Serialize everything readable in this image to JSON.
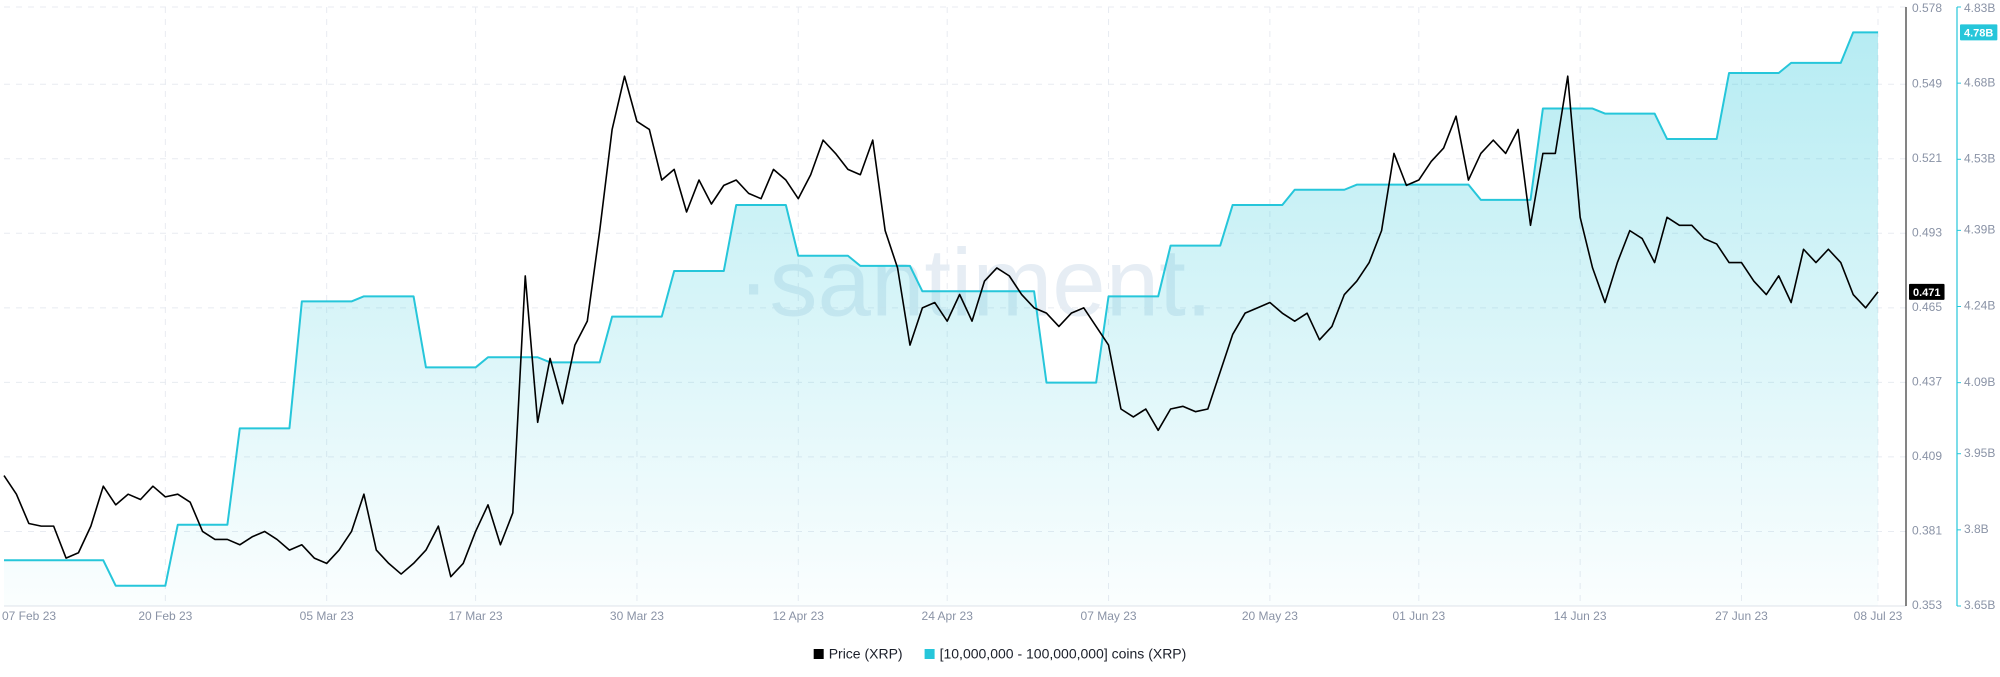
{
  "chart_data": {
    "type": "line",
    "watermark": "·santiment.",
    "x": [
      "07 Feb 23",
      "08 Feb 23",
      "09 Feb 23",
      "10 Feb 23",
      "11 Feb 23",
      "12 Feb 23",
      "13 Feb 23",
      "14 Feb 23",
      "15 Feb 23",
      "16 Feb 23",
      "17 Feb 23",
      "18 Feb 23",
      "19 Feb 23",
      "20 Feb 23",
      "21 Feb 23",
      "22 Feb 23",
      "23 Feb 23",
      "24 Feb 23",
      "25 Feb 23",
      "26 Feb 23",
      "27 Feb 23",
      "28 Feb 23",
      "01 Mar 23",
      "02 Mar 23",
      "03 Mar 23",
      "04 Mar 23",
      "05 Mar 23",
      "06 Mar 23",
      "07 Mar 23",
      "08 Mar 23",
      "09 Mar 23",
      "10 Mar 23",
      "11 Mar 23",
      "12 Mar 23",
      "13 Mar 23",
      "14 Mar 23",
      "15 Mar 23",
      "16 Mar 23",
      "17 Mar 23",
      "18 Mar 23",
      "19 Mar 23",
      "20 Mar 23",
      "21 Mar 23",
      "22 Mar 23",
      "23 Mar 23",
      "24 Mar 23",
      "25 Mar 23",
      "26 Mar 23",
      "27 Mar 23",
      "28 Mar 23",
      "29 Mar 23",
      "30 Mar 23",
      "31 Mar 23",
      "01 Apr 23",
      "02 Apr 23",
      "03 Apr 23",
      "04 Apr 23",
      "05 Apr 23",
      "06 Apr 23",
      "07 Apr 23",
      "08 Apr 23",
      "09 Apr 23",
      "10 Apr 23",
      "11 Apr 23",
      "12 Apr 23",
      "13 Apr 23",
      "14 Apr 23",
      "15 Apr 23",
      "16 Apr 23",
      "17 Apr 23",
      "18 Apr 23",
      "19 Apr 23",
      "20 Apr 23",
      "21 Apr 23",
      "22 Apr 23",
      "23 Apr 23",
      "24 Apr 23",
      "25 Apr 23",
      "26 Apr 23",
      "27 Apr 23",
      "28 Apr 23",
      "29 Apr 23",
      "30 Apr 23",
      "01 May 23",
      "02 May 23",
      "03 May 23",
      "04 May 23",
      "05 May 23",
      "06 May 23",
      "07 May 23",
      "08 May 23",
      "09 May 23",
      "10 May 23",
      "11 May 23",
      "12 May 23",
      "13 May 23",
      "14 May 23",
      "15 May 23",
      "16 May 23",
      "17 May 23",
      "18 May 23",
      "19 May 23",
      "20 May 23",
      "21 May 23",
      "22 May 23",
      "23 May 23",
      "24 May 23",
      "25 May 23",
      "26 May 23",
      "27 May 23",
      "28 May 23",
      "29 May 23",
      "30 May 23",
      "31 May 23",
      "01 Jun 23",
      "02 Jun 23",
      "03 Jun 23",
      "04 Jun 23",
      "05 Jun 23",
      "06 Jun 23",
      "07 Jun 23",
      "08 Jun 23",
      "09 Jun 23",
      "10 Jun 23",
      "11 Jun 23",
      "12 Jun 23",
      "13 Jun 23",
      "14 Jun 23",
      "15 Jun 23",
      "16 Jun 23",
      "17 Jun 23",
      "18 Jun 23",
      "19 Jun 23",
      "20 Jun 23",
      "21 Jun 23",
      "22 Jun 23",
      "23 Jun 23",
      "24 Jun 23",
      "25 Jun 23",
      "26 Jun 23",
      "27 Jun 23",
      "28 Jun 23",
      "29 Jun 23",
      "30 Jun 23",
      "01 Jul 23",
      "02 Jul 23",
      "03 Jul 23",
      "04 Jul 23",
      "05 Jul 23",
      "06 Jul 23",
      "07 Jul 23",
      "08 Jul 23"
    ],
    "xticks": [
      "07 Feb 23",
      "20 Feb 23",
      "05 Mar 23",
      "17 Mar 23",
      "30 Mar 23",
      "12 Apr 23",
      "24 Apr 23",
      "07 May 23",
      "20 May 23",
      "01 Jun 23",
      "14 Jun 23",
      "27 Jun 23",
      "08 Jul 23"
    ],
    "ylim": [
      0.353,
      0.578
    ],
    "yticks": [
      0.353,
      0.381,
      0.409,
      0.437,
      0.465,
      0.493,
      0.521,
      0.549,
      0.578
    ],
    "y2lim": [
      3650000000.0,
      4830000000.0
    ],
    "y2ticks": [
      {
        "value": 3650000000.0,
        "label": "3.65B"
      },
      {
        "value": 3800000000.0,
        "label": "3.8B"
      },
      {
        "value": 3950000000.0,
        "label": "3.95B"
      },
      {
        "value": 4090000000.0,
        "label": "4.09B"
      },
      {
        "value": 4240000000.0,
        "label": "4.24B"
      },
      {
        "value": 4390000000.0,
        "label": "4.39B"
      },
      {
        "value": 4530000000.0,
        "label": "4.53B"
      },
      {
        "value": 4680000000.0,
        "label": "4.68B"
      },
      {
        "value": 4830000000.0,
        "label": "4.83B"
      }
    ],
    "grid": true,
    "legend": "bottom",
    "series": [
      {
        "name": "Price (XRP)",
        "color": "#000000",
        "values": [
          0.402,
          0.395,
          0.384,
          0.383,
          0.383,
          0.371,
          0.373,
          0.383,
          0.398,
          0.391,
          0.395,
          0.393,
          0.398,
          0.394,
          0.395,
          0.392,
          0.381,
          0.378,
          0.378,
          0.376,
          0.379,
          0.381,
          0.378,
          0.374,
          0.376,
          0.371,
          0.369,
          0.374,
          0.381,
          0.395,
          0.374,
          0.369,
          0.365,
          0.369,
          0.374,
          0.383,
          0.364,
          0.369,
          0.381,
          0.391,
          0.376,
          0.388,
          0.477,
          0.422,
          0.446,
          0.429,
          0.451,
          0.46,
          0.494,
          0.532,
          0.552,
          0.535,
          0.532,
          0.513,
          0.517,
          0.501,
          0.513,
          0.504,
          0.511,
          0.513,
          0.508,
          0.506,
          0.517,
          0.513,
          0.506,
          0.515,
          0.528,
          0.523,
          0.517,
          0.515,
          0.528,
          0.494,
          0.48,
          0.451,
          0.465,
          0.467,
          0.46,
          0.47,
          0.46,
          0.475,
          0.48,
          0.477,
          0.47,
          0.465,
          0.463,
          0.458,
          0.463,
          0.465,
          0.458,
          0.451,
          0.427,
          0.424,
          0.427,
          0.419,
          0.427,
          0.428,
          0.426,
          0.427,
          0.441,
          0.455,
          0.463,
          0.465,
          0.467,
          0.463,
          0.46,
          0.463,
          0.453,
          0.458,
          0.47,
          0.475,
          0.482,
          0.494,
          0.523,
          0.511,
          0.513,
          0.52,
          0.525,
          0.537,
          0.513,
          0.523,
          0.528,
          0.523,
          0.532,
          0.496,
          0.523,
          0.523,
          0.552,
          0.499,
          0.48,
          0.467,
          0.482,
          0.494,
          0.491,
          0.482,
          0.499,
          0.496,
          0.496,
          0.491,
          0.489,
          0.482,
          0.482,
          0.475,
          0.47,
          0.477,
          0.467,
          0.487,
          0.482,
          0.487,
          0.482,
          0.47,
          0.465,
          0.471
        ]
      },
      {
        "name": "[10,000,000 - 100,000,000] coins (XRP)",
        "color": "#26c6da",
        "axis": "y2",
        "area": true,
        "last_value_label": "4.78B",
        "values": [
          3740000000.0,
          3740000000.0,
          3740000000.0,
          3740000000.0,
          3740000000.0,
          3740000000.0,
          3740000000.0,
          3740000000.0,
          3740000000.0,
          3690000000.0,
          3690000000.0,
          3690000000.0,
          3690000000.0,
          3690000000.0,
          3810000000.0,
          3810000000.0,
          3810000000.0,
          3810000000.0,
          3810000000.0,
          4000000000.0,
          4000000000.0,
          4000000000.0,
          4000000000.0,
          4000000000.0,
          4250000000.0,
          4250000000.0,
          4250000000.0,
          4250000000.0,
          4250000000.0,
          4260000000.0,
          4260000000.0,
          4260000000.0,
          4260000000.0,
          4260000000.0,
          4120000000.0,
          4120000000.0,
          4120000000.0,
          4120000000.0,
          4120000000.0,
          4140000000.0,
          4140000000.0,
          4140000000.0,
          4140000000.0,
          4140000000.0,
          4130000000.0,
          4130000000.0,
          4130000000.0,
          4130000000.0,
          4130000000.0,
          4220000000.0,
          4220000000.0,
          4220000000.0,
          4220000000.0,
          4220000000.0,
          4310000000.0,
          4310000000.0,
          4310000000.0,
          4310000000.0,
          4310000000.0,
          4440000000.0,
          4440000000.0,
          4440000000.0,
          4440000000.0,
          4440000000.0,
          4340000000.0,
          4340000000.0,
          4340000000.0,
          4340000000.0,
          4340000000.0,
          4320000000.0,
          4320000000.0,
          4320000000.0,
          4320000000.0,
          4320000000.0,
          4270000000.0,
          4270000000.0,
          4270000000.0,
          4270000000.0,
          4270000000.0,
          4270000000.0,
          4270000000.0,
          4270000000.0,
          4270000000.0,
          4270000000.0,
          4090000000.0,
          4090000000.0,
          4090000000.0,
          4090000000.0,
          4090000000.0,
          4260000000.0,
          4260000000.0,
          4260000000.0,
          4260000000.0,
          4260000000.0,
          4360000000.0,
          4360000000.0,
          4360000000.0,
          4360000000.0,
          4360000000.0,
          4440000000.0,
          4440000000.0,
          4440000000.0,
          4440000000.0,
          4440000000.0,
          4470000000.0,
          4470000000.0,
          4470000000.0,
          4470000000.0,
          4470000000.0,
          4480000000.0,
          4480000000.0,
          4480000000.0,
          4480000000.0,
          4480000000.0,
          4480000000.0,
          4480000000.0,
          4480000000.0,
          4480000000.0,
          4480000000.0,
          4450000000.0,
          4450000000.0,
          4450000000.0,
          4450000000.0,
          4450000000.0,
          4630000000.0,
          4630000000.0,
          4630000000.0,
          4630000000.0,
          4630000000.0,
          4620000000.0,
          4620000000.0,
          4620000000.0,
          4620000000.0,
          4620000000.0,
          4570000000.0,
          4570000000.0,
          4570000000.0,
          4570000000.0,
          4570000000.0,
          4700000000.0,
          4700000000.0,
          4700000000.0,
          4700000000.0,
          4700000000.0,
          4720000000.0,
          4720000000.0,
          4720000000.0,
          4720000000.0,
          4720000000.0,
          4780000000.0,
          4780000000.0,
          4780000000.0
        ]
      }
    ]
  }
}
